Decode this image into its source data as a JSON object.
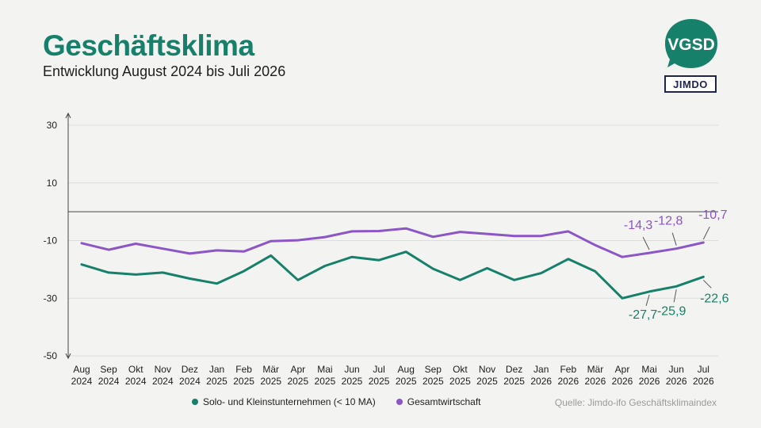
{
  "header": {
    "title": "Geschäftsklima",
    "subtitle": "Entwicklung August 2024 bis Juli 2026"
  },
  "logos": {
    "vgsd_text": "VGSD",
    "jimdo_text": "JIMDO"
  },
  "colors": {
    "solo": "#17806a",
    "gesamt": "#8c55c8",
    "title": "#17806a"
  },
  "source": "Quelle: Jimdo-ifo Geschäftsklimaindex",
  "chart_data": {
    "type": "line",
    "title": "Geschäftsklima",
    "subtitle": "Entwicklung August 2024 bis Juli 2026",
    "categories": [
      [
        "Aug",
        "2024"
      ],
      [
        "Sep",
        "2024"
      ],
      [
        "Okt",
        "2024"
      ],
      [
        "Nov",
        "2024"
      ],
      [
        "Dez",
        "2024"
      ],
      [
        "Jan",
        "2025"
      ],
      [
        "Feb",
        "2025"
      ],
      [
        "Mär",
        "2025"
      ],
      [
        "Apr",
        "2025"
      ],
      [
        "Mai",
        "2025"
      ],
      [
        "Jun",
        "2025"
      ],
      [
        "Jul",
        "2025"
      ],
      [
        "Aug",
        "2025"
      ],
      [
        "Sep",
        "2025"
      ],
      [
        "Okt",
        "2025"
      ],
      [
        "Nov",
        "2025"
      ],
      [
        "Dez",
        "2025"
      ],
      [
        "Jan",
        "2026"
      ],
      [
        "Feb",
        "2026"
      ],
      [
        "Mär",
        "2026"
      ],
      [
        "Apr",
        "2026"
      ],
      [
        "Mai",
        "2026"
      ],
      [
        "Jun",
        "2026"
      ],
      [
        "Jul",
        "2026"
      ]
    ],
    "yticks": [
      30,
      10,
      -10,
      -30,
      -50
    ],
    "ylim": [
      -50,
      30
    ],
    "grid": true,
    "zero_line": true,
    "series": [
      {
        "name": "Solo- und Kleinstunternehmen (< 10 MA)",
        "color": "#17806a",
        "values": [
          -18.3,
          -21.1,
          -21.8,
          -21.1,
          -23.2,
          -24.9,
          -20.6,
          -15.2,
          -23.7,
          -18.8,
          -15.7,
          -16.8,
          -13.9,
          -19.8,
          -23.7,
          -19.6,
          -23.7,
          -21.3,
          -16.4,
          -20.7,
          -30.0,
          -27.7,
          -25.9,
          -22.6
        ]
      },
      {
        "name": "Gesamtwirtschaft",
        "color": "#8c55c8",
        "values": [
          -10.9,
          -13.2,
          -11.1,
          -12.8,
          -14.5,
          -13.4,
          -13.8,
          -10.2,
          -9.9,
          -8.8,
          -6.8,
          -6.7,
          -5.8,
          -8.7,
          -7.0,
          -7.7,
          -8.4,
          -8.4,
          -6.8,
          -11.6,
          -15.7,
          -14.3,
          -12.8,
          -10.7
        ]
      }
    ],
    "annotations": [
      {
        "series": 0,
        "index": 21,
        "text": "-27,7"
      },
      {
        "series": 0,
        "index": 22,
        "text": "-25,9"
      },
      {
        "series": 0,
        "index": 23,
        "text": "-22,6"
      },
      {
        "series": 1,
        "index": 21,
        "text": "-14,3"
      },
      {
        "series": 1,
        "index": 22,
        "text": "-12,8"
      },
      {
        "series": 1,
        "index": 23,
        "text": "-10,7"
      }
    ],
    "legend_position": "bottom"
  }
}
